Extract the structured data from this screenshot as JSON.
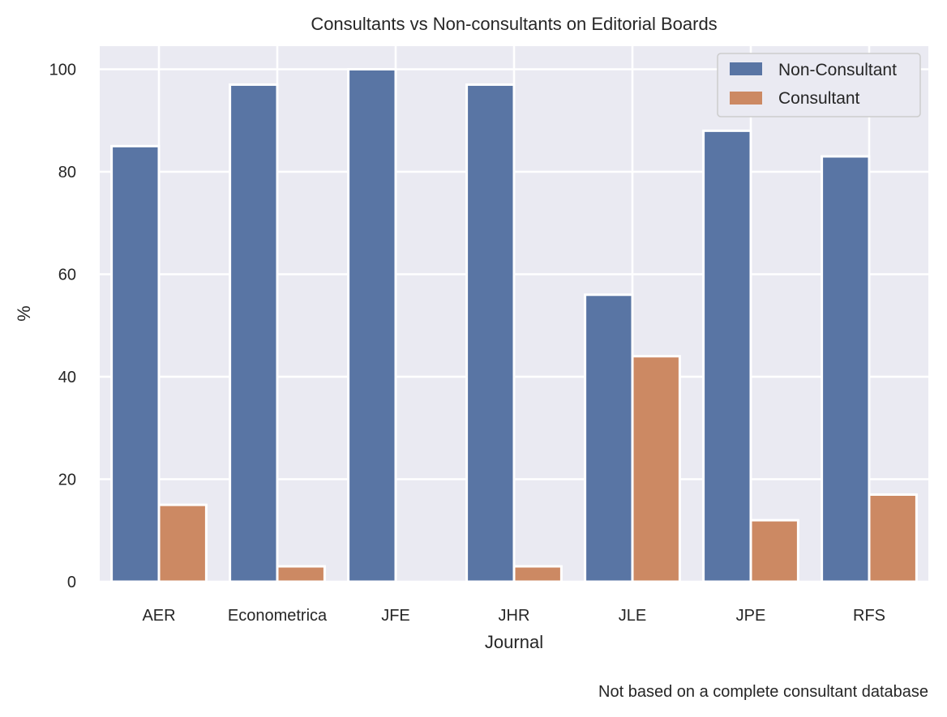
{
  "chart_data": {
    "type": "bar",
    "title": "Consultants vs Non-consultants on Editorial Boards",
    "xlabel": "Journal",
    "ylabel": "%",
    "categories": [
      "AER",
      "Econometrica",
      "JFE",
      "JHR",
      "JLE",
      "JPE",
      "RFS"
    ],
    "series": [
      {
        "name": "Non-Consultant",
        "values": [
          85,
          97,
          100,
          97,
          56,
          88,
          83
        ],
        "color": "#5975a4"
      },
      {
        "name": "Consultant",
        "values": [
          15,
          3,
          0,
          3,
          44,
          12,
          17
        ],
        "color": "#cc8963"
      }
    ],
    "ylim": [
      0,
      104.5
    ],
    "yticks": [
      0,
      20,
      40,
      60,
      80,
      100
    ],
    "grid": true,
    "legend_position": "top-right",
    "background_color": "#eaeaf2",
    "caption": "Not based on a complete consultant database"
  }
}
